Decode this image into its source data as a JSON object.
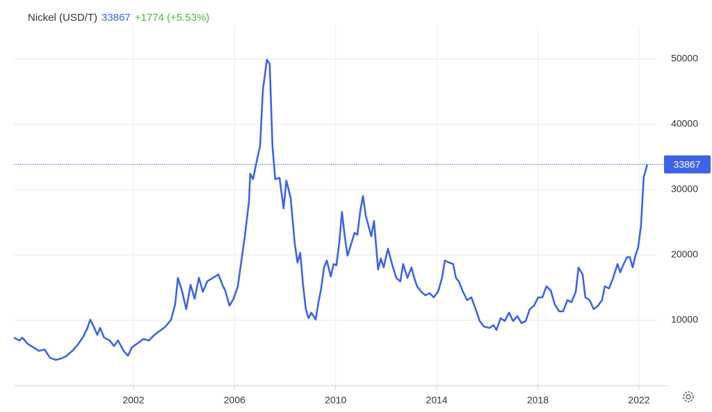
{
  "chart_data": {
    "type": "line",
    "title": "Nickel (USD/T)",
    "last": 33867,
    "change": "+1774 (+5.53%)",
    "xlim": [
      1997.27,
      2023.13
    ],
    "xticks": [
      2002,
      2006,
      2010,
      2014,
      2018,
      2022
    ],
    "ylim": [
      0,
      55000
    ],
    "yticks": [
      10000,
      20000,
      30000,
      40000,
      50000
    ],
    "grid": true,
    "x": [
      1997.27,
      1997.49,
      1997.6,
      1997.82,
      1998.04,
      1998.26,
      1998.48,
      1998.7,
      1998.92,
      1999.14,
      1999.36,
      1999.58,
      1999.8,
      2000.02,
      2000.18,
      2000.29,
      2000.4,
      2000.57,
      2000.68,
      2000.84,
      2001.06,
      2001.23,
      2001.39,
      2001.61,
      2001.78,
      2001.94,
      2002.17,
      2002.39,
      2002.61,
      2002.83,
      2003.05,
      2003.27,
      2003.49,
      2003.65,
      2003.76,
      2003.93,
      2004.09,
      2004.26,
      2004.42,
      2004.59,
      2004.75,
      2004.92,
      2005.14,
      2005.36,
      2005.52,
      2005.63,
      2005.8,
      2005.96,
      2006.13,
      2006.29,
      2006.4,
      2006.57,
      2006.62,
      2006.73,
      2006.9,
      2007.01,
      2007.12,
      2007.28,
      2007.39,
      2007.5,
      2007.61,
      2007.78,
      2007.94,
      2008.05,
      2008.22,
      2008.38,
      2008.49,
      2008.6,
      2008.71,
      2008.82,
      2008.93,
      2009.04,
      2009.21,
      2009.32,
      2009.43,
      2009.54,
      2009.65,
      2009.81,
      2009.92,
      2010.03,
      2010.14,
      2010.25,
      2010.36,
      2010.47,
      2010.58,
      2010.75,
      2010.86,
      2010.97,
      2011.08,
      2011.19,
      2011.3,
      2011.41,
      2011.52,
      2011.68,
      2011.79,
      2011.9,
      2012.07,
      2012.23,
      2012.4,
      2012.56,
      2012.67,
      2012.84,
      2013.0,
      2013.11,
      2013.22,
      2013.39,
      2013.55,
      2013.72,
      2013.88,
      2014.05,
      2014.21,
      2014.32,
      2014.49,
      2014.65,
      2014.76,
      2014.87,
      2015.04,
      2015.2,
      2015.37,
      2015.54,
      2015.7,
      2015.87,
      2016.09,
      2016.25,
      2016.36,
      2016.53,
      2016.69,
      2016.86,
      2017.02,
      2017.19,
      2017.35,
      2017.52,
      2017.68,
      2017.85,
      2018.01,
      2018.18,
      2018.34,
      2018.51,
      2018.67,
      2018.84,
      2019.0,
      2019.17,
      2019.33,
      2019.5,
      2019.61,
      2019.77,
      2019.88,
      2020.05,
      2020.21,
      2020.38,
      2020.54,
      2020.65,
      2020.82,
      2020.98,
      2021.15,
      2021.26,
      2021.37,
      2021.53,
      2021.64,
      2021.75,
      2021.86,
      2021.97,
      2022.08,
      2022.19,
      2022.33
    ],
    "series": [
      {
        "name": "Nickel",
        "color": "#3d63e6",
        "values": [
          7340,
          6910,
          7340,
          6380,
          5850,
          5320,
          5530,
          4260,
          3940,
          4150,
          4570,
          5320,
          6280,
          7550,
          8830,
          10100,
          9260,
          7770,
          8830,
          7340,
          6910,
          6060,
          6910,
          5320,
          4570,
          5850,
          6490,
          7130,
          6910,
          7770,
          8400,
          9040,
          10100,
          12450,
          16490,
          14360,
          11700,
          15430,
          13300,
          16490,
          14360,
          15960,
          16490,
          17020,
          15430,
          14570,
          12230,
          13300,
          15210,
          19680,
          22660,
          28190,
          32450,
          31600,
          34790,
          36700,
          45210,
          49890,
          49260,
          36700,
          31600,
          31810,
          27130,
          31380,
          28720,
          21810,
          18830,
          20320,
          15430,
          11700,
          10320,
          11170,
          10100,
          12770,
          14890,
          18090,
          19150,
          16700,
          18620,
          18400,
          21810,
          26600,
          22870,
          19890,
          21280,
          23400,
          23090,
          26600,
          29040,
          26060,
          24470,
          22870,
          25210,
          17770,
          19470,
          18090,
          20960,
          18620,
          16490,
          15960,
          18620,
          16490,
          18090,
          16490,
          15210,
          14360,
          13830,
          14150,
          13510,
          14360,
          16490,
          19150,
          18830,
          18620,
          16490,
          15960,
          14360,
          13090,
          13510,
          11700,
          9890,
          9040,
          8830,
          9260,
          8510,
          10320,
          9890,
          11170,
          9890,
          10640,
          9570,
          9890,
          11700,
          12230,
          13510,
          13510,
          15210,
          14570,
          12450,
          11380,
          11380,
          13090,
          12770,
          14360,
          18090,
          17020,
          13510,
          13090,
          11700,
          12230,
          13090,
          15210,
          14890,
          16490,
          18620,
          17340,
          18400,
          19680,
          19680,
          18090,
          19890,
          21170,
          24470,
          31920,
          33867
        ]
      }
    ]
  }
}
